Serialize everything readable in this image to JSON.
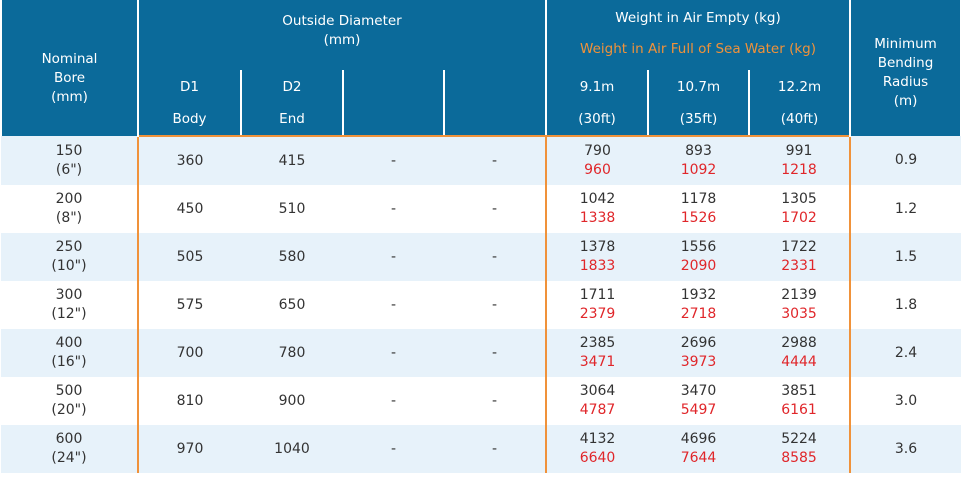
{
  "table": {
    "header": {
      "nominal_bore": [
        "Nominal",
        "Bore",
        "(mm)"
      ],
      "outside_diameter": [
        "Outside Diameter",
        "(mm)"
      ],
      "weight_empty": "Weight in Air Empty (kg)",
      "weight_full": "Weight in Air Full of Sea Water (kg)",
      "bending_radius": [
        "Minimum",
        "Bending",
        "Radius",
        "(m)"
      ],
      "sub1": [
        "D1",
        "D2",
        "",
        "",
        "9.1m",
        "10.7m",
        "12.2m"
      ],
      "sub2": [
        "Body",
        "End",
        "",
        "",
        "(30ft)",
        "(35ft)",
        "(40ft)"
      ]
    },
    "rows": [
      {
        "bore": "150",
        "bore_in": "(6\")",
        "d1": "360",
        "d2": "415",
        "c3": "-",
        "c4": "-",
        "empty": [
          "790",
          "893",
          "991"
        ],
        "full": [
          "960",
          "1092",
          "1218"
        ],
        "radius": "0.9"
      },
      {
        "bore": "200",
        "bore_in": "(8\")",
        "d1": "450",
        "d2": "510",
        "c3": "-",
        "c4": "-",
        "empty": [
          "1042",
          "1178",
          "1305"
        ],
        "full": [
          "1338",
          "1526",
          "1702"
        ],
        "radius": "1.2"
      },
      {
        "bore": "250",
        "bore_in": "(10\")",
        "d1": "505",
        "d2": "580",
        "c3": "-",
        "c4": "-",
        "empty": [
          "1378",
          "1556",
          "1722"
        ],
        "full": [
          "1833",
          "2090",
          "2331"
        ],
        "radius": "1.5"
      },
      {
        "bore": "300",
        "bore_in": "(12\")",
        "d1": "575",
        "d2": "650",
        "c3": "-",
        "c4": "-",
        "empty": [
          "1711",
          "1932",
          "2139"
        ],
        "full": [
          "2379",
          "2718",
          "3035"
        ],
        "radius": "1.8"
      },
      {
        "bore": "400",
        "bore_in": "(16\")",
        "d1": "700",
        "d2": "780",
        "c3": "-",
        "c4": "-",
        "empty": [
          "2385",
          "2696",
          "2988"
        ],
        "full": [
          "3471",
          "3973",
          "4444"
        ],
        "radius": "2.4"
      },
      {
        "bore": "500",
        "bore_in": "(20\")",
        "d1": "810",
        "d2": "900",
        "c3": "-",
        "c4": "-",
        "empty": [
          "3064",
          "3470",
          "3851"
        ],
        "full": [
          "4787",
          "5497",
          "6161"
        ],
        "radius": "3.0"
      },
      {
        "bore": "600",
        "bore_in": "(24\")",
        "d1": "970",
        "d2": "1040",
        "c3": "-",
        "c4": "-",
        "empty": [
          "4132",
          "4696",
          "5224"
        ],
        "full": [
          "6640",
          "7644",
          "8585"
        ],
        "radius": "3.6"
      }
    ]
  }
}
